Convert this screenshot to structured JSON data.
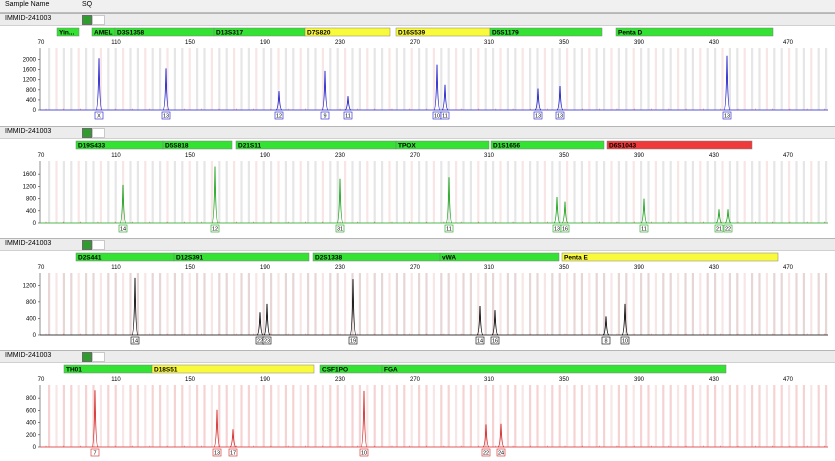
{
  "header": {
    "sample_label": "Sample Name",
    "sample_value": "SQ"
  },
  "x_ticks": [
    "70",
    "110",
    "150",
    "190",
    "230",
    "270",
    "310",
    "350",
    "390",
    "430",
    "470"
  ],
  "colors": {
    "green": "#33e233",
    "yellow": "#fafa3c",
    "red": "#ee3a3a"
  },
  "panels": [
    {
      "sample": "IMMID-241003",
      "color": "#1a1acb",
      "y_ticks": [
        "2000",
        "1600",
        "1200",
        "800",
        "400",
        "0"
      ],
      "y_max": 2300,
      "loci": [
        {
          "name": "Yin...",
          "start": 57,
          "end": 79,
          "fill": "green"
        },
        {
          "name": "AMEL",
          "start": 92,
          "end": 115,
          "fill": "green"
        },
        {
          "name": "D3S1358",
          "start": 115,
          "end": 214,
          "fill": "green"
        },
        {
          "name": "D13S317",
          "start": 214,
          "end": 305,
          "fill": "green"
        },
        {
          "name": "D7S820",
          "start": 305,
          "end": 390,
          "fill": "yellow"
        },
        {
          "name": "D16S539",
          "start": 396,
          "end": 490,
          "fill": "yellow"
        },
        {
          "name": "D5S1179",
          "start": 490,
          "end": 602,
          "fill": "green"
        },
        {
          "name": "Penta D",
          "start": 616,
          "end": 773,
          "fill": "green"
        }
      ],
      "peaks": [
        {
          "x": 99,
          "h": 2050,
          "label": "X"
        },
        {
          "x": 166,
          "h": 1650,
          "label": "13"
        },
        {
          "x": 279,
          "h": 750,
          "label": "12"
        },
        {
          "x": 325,
          "h": 1550,
          "label": "9"
        },
        {
          "x": 348,
          "h": 550,
          "label": "11"
        },
        {
          "x": 437,
          "h": 1800,
          "label": "10"
        },
        {
          "x": 445,
          "h": 1000,
          "label": "11"
        },
        {
          "x": 538,
          "h": 850,
          "label": "13"
        },
        {
          "x": 560,
          "h": 950,
          "label": "13"
        },
        {
          "x": 727,
          "h": 2150,
          "label": "13"
        }
      ]
    },
    {
      "sample": "IMMID-241003",
      "color": "#16a116",
      "y_ticks": [
        "1600",
        "1200",
        "800",
        "400",
        "0"
      ],
      "y_max": 1900,
      "loci": [
        {
          "name": "D19S433",
          "start": 76,
          "end": 163,
          "fill": "green"
        },
        {
          "name": "D5S818",
          "start": 163,
          "end": 232,
          "fill": "green"
        },
        {
          "name": "D21S11",
          "start": 236,
          "end": 396,
          "fill": "green"
        },
        {
          "name": "TPOX",
          "start": 396,
          "end": 489,
          "fill": "green"
        },
        {
          "name": "D1S1656",
          "start": 491,
          "end": 604,
          "fill": "green"
        },
        {
          "name": "D6S1043",
          "start": 607,
          "end": 752,
          "fill": "red"
        }
      ],
      "peaks": [
        {
          "x": 123,
          "h": 1250,
          "label": "14"
        },
        {
          "x": 215,
          "h": 1850,
          "label": "12"
        },
        {
          "x": 340,
          "h": 1450,
          "label": "31"
        },
        {
          "x": 449,
          "h": 1500,
          "label": "11"
        },
        {
          "x": 557,
          "h": 850,
          "label": "13"
        },
        {
          "x": 565,
          "h": 700,
          "label": "16"
        },
        {
          "x": 644,
          "h": 800,
          "label": "11"
        },
        {
          "x": 719,
          "h": 450,
          "label": "21"
        },
        {
          "x": 728,
          "h": 450,
          "label": "22"
        }
      ]
    },
    {
      "sample": "IMMID-241003",
      "color": "#000000",
      "y_ticks": [
        "1200",
        "800",
        "400",
        "0"
      ],
      "y_max": 1400,
      "loci": [
        {
          "name": "D2S441",
          "start": 76,
          "end": 174,
          "fill": "green"
        },
        {
          "name": "D12S391",
          "start": 174,
          "end": 309,
          "fill": "green"
        },
        {
          "name": "D2S1338",
          "start": 313,
          "end": 440,
          "fill": "green"
        },
        {
          "name": "vWA",
          "start": 440,
          "end": 559,
          "fill": "green"
        },
        {
          "name": "Penta E",
          "start": 562,
          "end": 778,
          "fill": "yellow"
        }
      ],
      "peaks": [
        {
          "x": 135,
          "h": 1380,
          "label": "14"
        },
        {
          "x": 260,
          "h": 550,
          "label": "22"
        },
        {
          "x": 267,
          "h": 750,
          "label": "23"
        },
        {
          "x": 353,
          "h": 1350,
          "label": "19"
        },
        {
          "x": 480,
          "h": 700,
          "label": "14"
        },
        {
          "x": 495,
          "h": 600,
          "label": "16"
        },
        {
          "x": 606,
          "h": 450,
          "label": "8"
        },
        {
          "x": 625,
          "h": 750,
          "label": "10"
        }
      ]
    },
    {
      "sample": "IMMID-241003",
      "color": "#d42424",
      "y_ticks": [
        "800",
        "600",
        "400",
        "200",
        "0"
      ],
      "y_max": 950,
      "loci": [
        {
          "name": "TH01",
          "start": 64,
          "end": 152,
          "fill": "green"
        },
        {
          "name": "D18S51",
          "start": 152,
          "end": 314,
          "fill": "yellow"
        },
        {
          "name": "CSF1PO",
          "start": 320,
          "end": 382,
          "fill": "green"
        },
        {
          "name": "FGA",
          "start": 382,
          "end": 726,
          "fill": "green"
        }
      ],
      "peaks": [
        {
          "x": 95,
          "h": 930,
          "label": "7"
        },
        {
          "x": 217,
          "h": 610,
          "label": "13"
        },
        {
          "x": 233,
          "h": 290,
          "label": "17"
        },
        {
          "x": 364,
          "h": 920,
          "label": "10"
        },
        {
          "x": 486,
          "h": 370,
          "label": "22"
        },
        {
          "x": 501,
          "h": 380,
          "label": "24"
        }
      ]
    }
  ]
}
